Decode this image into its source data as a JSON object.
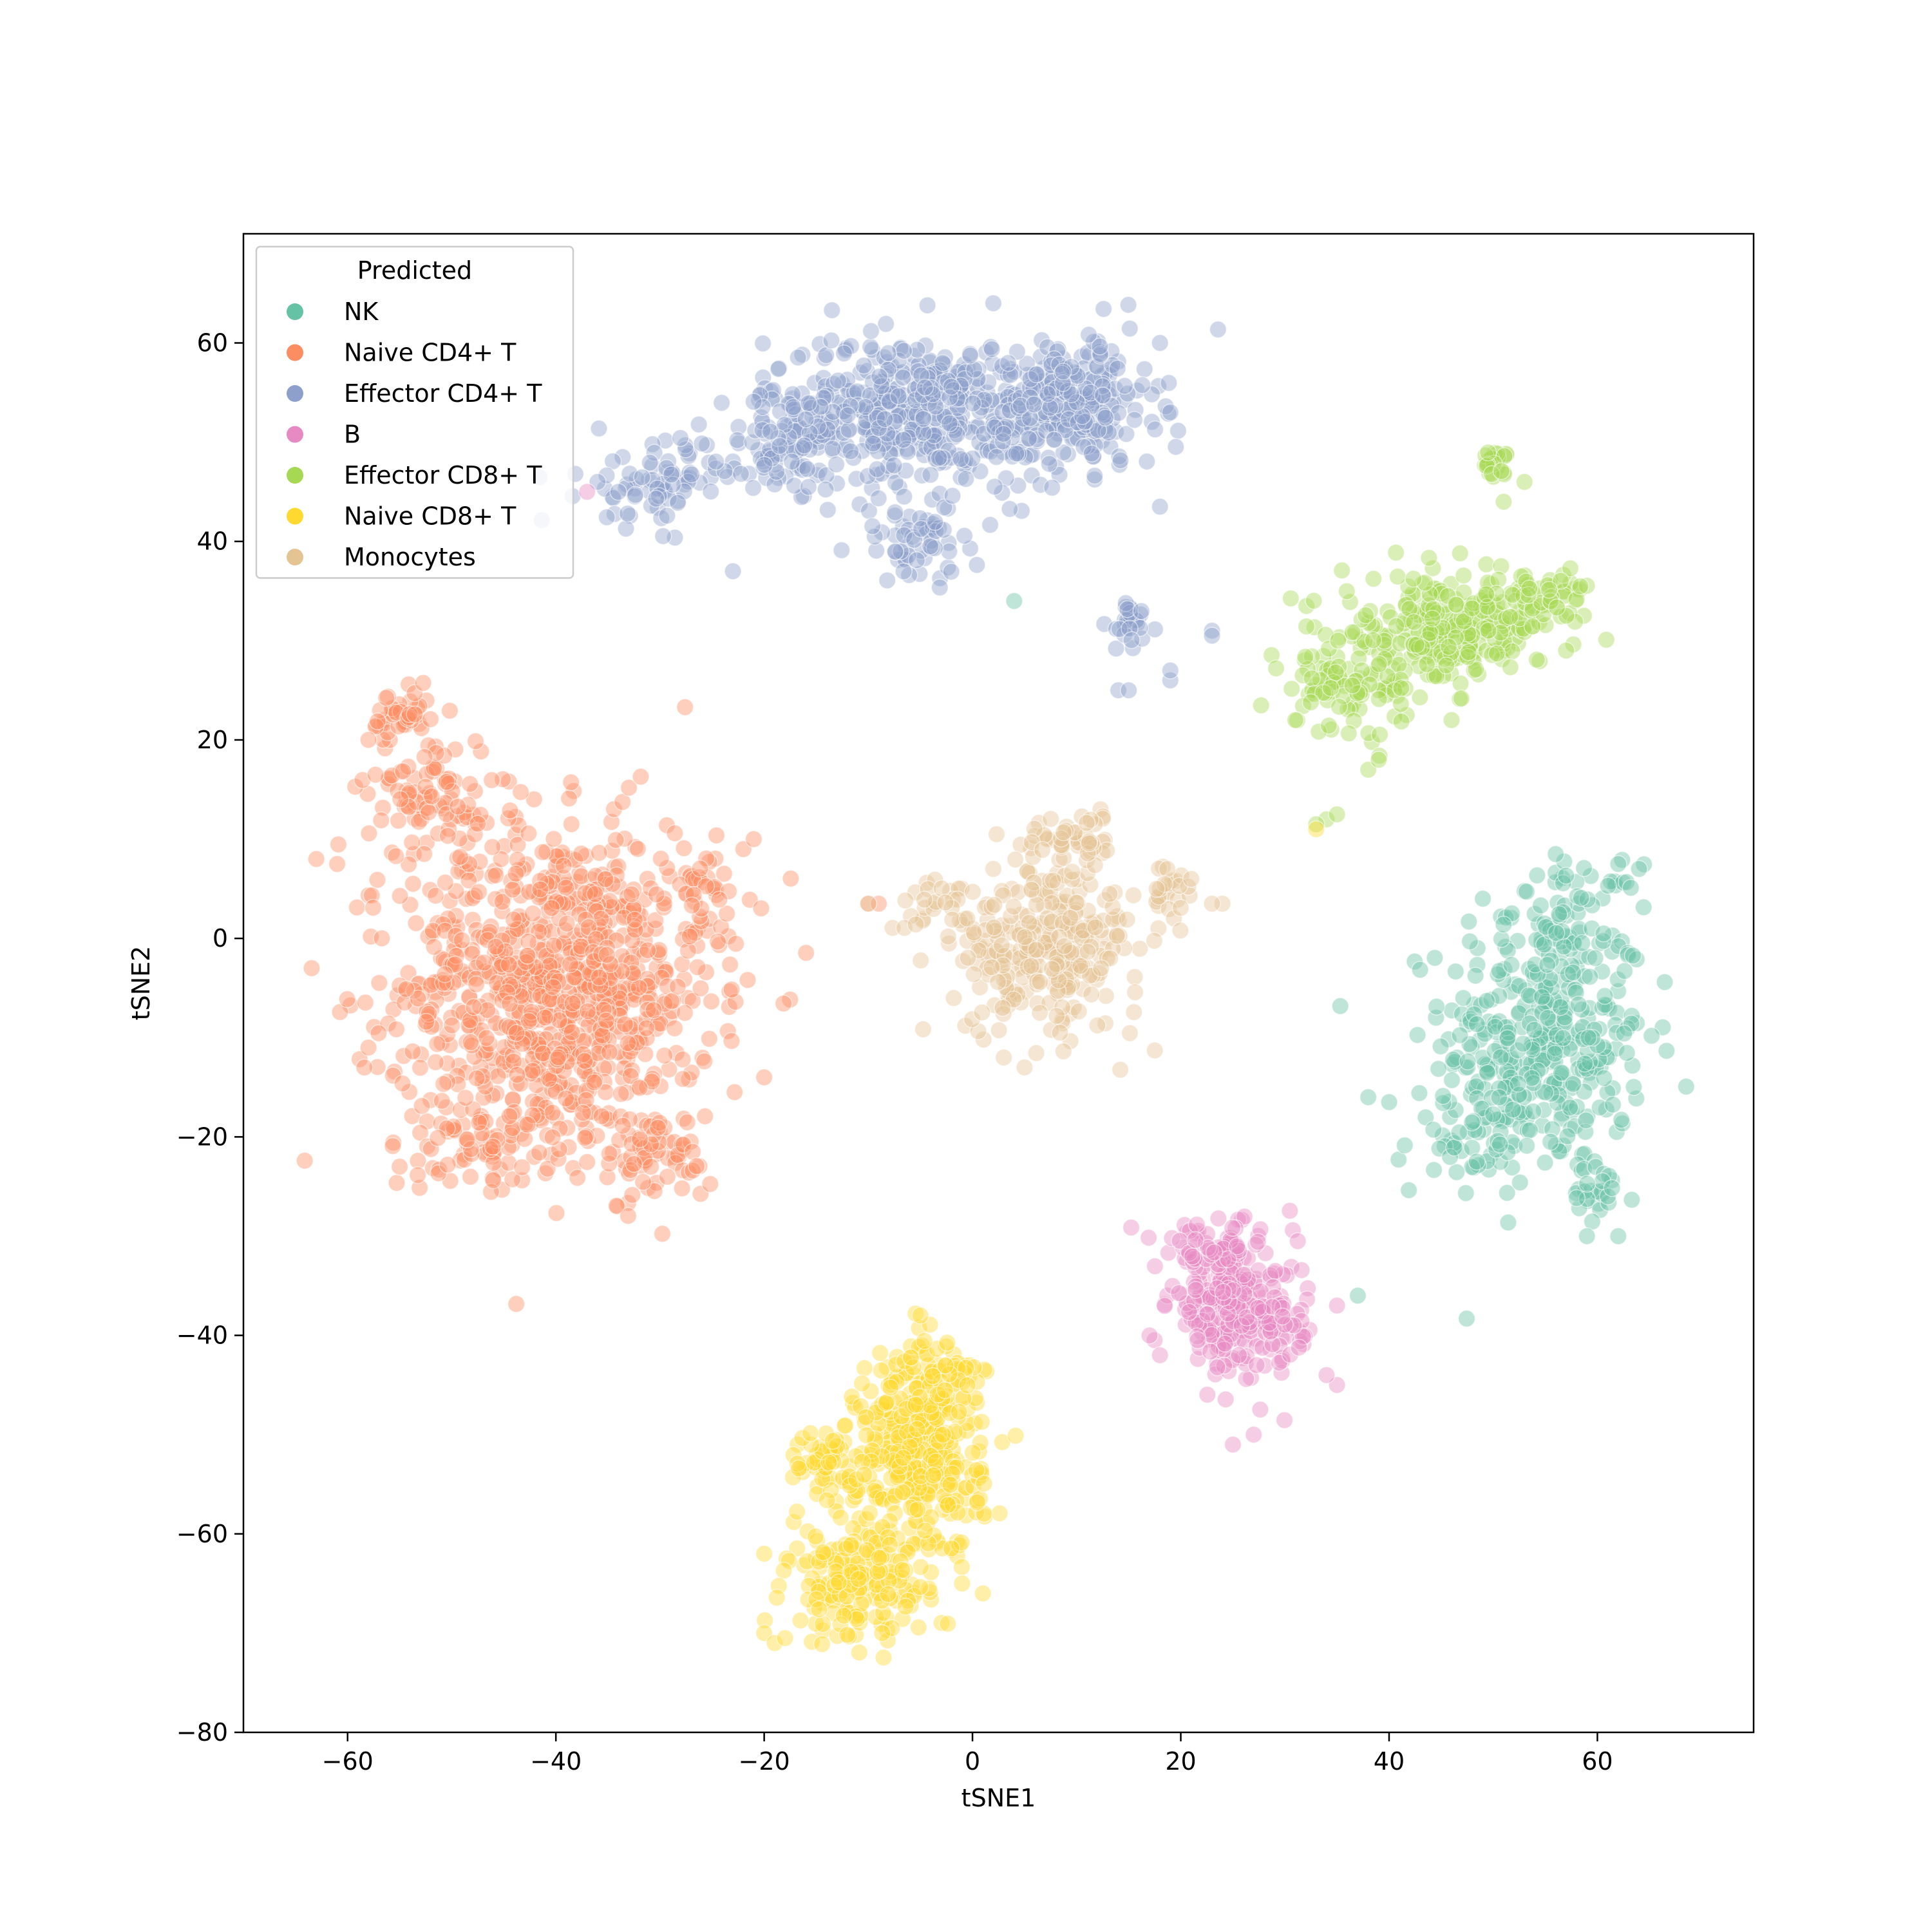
{
  "chart_data": {
    "type": "scatter",
    "title": "",
    "xlabel": "tSNE1",
    "ylabel": "tSNE2",
    "xlim": [
      -70,
      75
    ],
    "ylim": [
      -80,
      71
    ],
    "x_ticks": [
      -60,
      -40,
      -20,
      0,
      20,
      40,
      60
    ],
    "y_ticks": [
      -80,
      -60,
      -40,
      -20,
      0,
      20,
      40,
      60
    ],
    "x_tick_labels": [
      "−60",
      "−40",
      "−20",
      "0",
      "20",
      "40",
      "60"
    ],
    "y_tick_labels": [
      "−80",
      "−60",
      "−40",
      "−20",
      "0",
      "20",
      "40",
      "60"
    ],
    "grid": false,
    "legend": {
      "title": "Predicted",
      "placement": "top-left"
    },
    "series": [
      {
        "name": "NK",
        "color": "#66c2a5",
        "clusters": [
          {
            "center": [
              55,
              -10
            ],
            "spread": [
              6.5,
              9
            ],
            "n": 360
          },
          {
            "center": [
              48,
              -20
            ],
            "spread": [
              5,
              4
            ],
            "n": 60
          },
          {
            "center": [
              58,
              3
            ],
            "spread": [
              4,
              3
            ],
            "n": 50
          },
          {
            "center": [
              60,
              -26
            ],
            "spread": [
              2.5,
              2
            ],
            "n": 25
          }
        ],
        "points": [
          [
            56,
            8.5
          ],
          [
            62,
            7.5
          ],
          [
            64,
            7
          ],
          [
            49,
            4
          ],
          [
            38,
            -16
          ],
          [
            40,
            -16.5
          ],
          [
            37,
            -36
          ],
          [
            4,
            34
          ],
          [
            59,
            -30
          ],
          [
            62,
            -30
          ]
        ]
      },
      {
        "name": "Naive CD4+ T",
        "color": "#fc8d62",
        "clusters": [
          {
            "center": [
              -40,
              -5
            ],
            "spread": [
              10,
              11
            ],
            "n": 950
          },
          {
            "center": [
              -52,
              15
            ],
            "spread": [
              4,
              4
            ],
            "n": 90
          },
          {
            "center": [
              -55,
              22
            ],
            "spread": [
              2,
              2
            ],
            "n": 40
          },
          {
            "center": [
              -30,
              -22
            ],
            "spread": [
              3.5,
              3
            ],
            "n": 60
          },
          {
            "center": [
              -48,
              -20
            ],
            "spread": [
              4,
              3
            ],
            "n": 60
          },
          {
            "center": [
              -26,
              5
            ],
            "spread": [
              3,
              3
            ],
            "n": 40
          }
        ],
        "points": [
          [
            -63,
            8
          ],
          [
            -61,
            7.5
          ],
          [
            -58,
            20
          ],
          [
            -22,
            9
          ],
          [
            -21,
            10
          ],
          [
            -10,
            3.5
          ],
          [
            -9,
            3.5
          ],
          [
            -58,
            -11
          ],
          [
            -55,
            -23
          ],
          [
            -20,
            -14
          ]
        ]
      },
      {
        "name": "Effector CD4+ T",
        "color": "#8da0cb",
        "clusters": [
          {
            "center": [
              -5,
              53
            ],
            "spread": [
              10,
              5
            ],
            "n": 500
          },
          {
            "center": [
              10,
              54
            ],
            "spread": [
              5,
              4.5
            ],
            "n": 200
          },
          {
            "center": [
              -30,
              46
            ],
            "spread": [
              5,
              3
            ],
            "n": 80
          },
          {
            "center": [
              -5,
              40
            ],
            "spread": [
              4,
              3
            ],
            "n": 60
          },
          {
            "center": [
              -18,
              50
            ],
            "spread": [
              4,
              3
            ],
            "n": 60
          },
          {
            "center": [
              15,
              32
            ],
            "spread": [
              1.5,
              2
            ],
            "n": 30
          }
        ],
        "points": [
          [
            -36,
            46
          ],
          [
            -34,
            45
          ],
          [
            -23,
            37
          ],
          [
            14,
            25
          ],
          [
            15,
            25
          ],
          [
            19,
            26
          ],
          [
            19,
            27
          ],
          [
            23,
            31
          ],
          [
            23,
            30.5
          ],
          [
            18,
            43.5
          ],
          [
            2,
            64
          ],
          [
            18,
            60
          ],
          [
            19,
            53
          ]
        ]
      },
      {
        "name": "B",
        "color": "#e78ac3",
        "clusters": [
          {
            "center": [
              25,
              -37
            ],
            "spread": [
              4,
              4.5
            ],
            "n": 250
          },
          {
            "center": [
              22,
              -31
            ],
            "spread": [
              3,
              1.5
            ],
            "n": 40
          },
          {
            "center": [
              30,
              -40
            ],
            "spread": [
              2,
              2
            ],
            "n": 30
          }
        ],
        "points": [
          [
            17,
            -40
          ],
          [
            18,
            -42
          ],
          [
            35,
            -45
          ],
          [
            34,
            -44
          ],
          [
            25,
            -51
          ],
          [
            27,
            -50
          ],
          [
            35,
            -37
          ],
          [
            -37,
            45
          ]
        ]
      },
      {
        "name": "Effector CD8+ T",
        "color": "#a6d854",
        "clusters": [
          {
            "center": [
              45,
              31
            ],
            "spread": [
              6.5,
              3.5
            ],
            "n": 260
          },
          {
            "center": [
              36,
              25
            ],
            "spread": [
              4,
              2.5
            ],
            "n": 80
          },
          {
            "center": [
              55,
              34
            ],
            "spread": [
              3,
              2.5
            ],
            "n": 60
          },
          {
            "center": [
              50,
              48
            ],
            "spread": [
              1,
              0.8
            ],
            "n": 25
          }
        ],
        "points": [
          [
            38,
            17
          ],
          [
            39,
            18
          ],
          [
            34,
            12
          ],
          [
            35,
            12.5
          ],
          [
            33,
            11.5
          ],
          [
            51,
            44
          ],
          [
            53,
            46
          ],
          [
            57,
            29
          ],
          [
            31,
            22
          ]
        ]
      },
      {
        "name": "Naive CD8+ T",
        "color": "#ffd92f",
        "clusters": [
          {
            "center": [
              -5,
              -52
            ],
            "spread": [
              4,
              7
            ],
            "n": 350
          },
          {
            "center": [
              -11,
              -65
            ],
            "spread": [
              4.5,
              4
            ],
            "n": 180
          },
          {
            "center": [
              -14,
              -53
            ],
            "spread": [
              3,
              2.5
            ],
            "n": 60
          },
          {
            "center": [
              -3,
              -44
            ],
            "spread": [
              2.5,
              2.5
            ],
            "n": 50
          }
        ],
        "points": [
          [
            -20,
            -70
          ],
          [
            -19,
            -71
          ],
          [
            -18,
            -70.5
          ],
          [
            -20,
            -62
          ],
          [
            1,
            -66
          ],
          [
            -1,
            -65
          ],
          [
            -5,
            -38
          ],
          [
            33,
            11
          ]
        ]
      },
      {
        "name": "Monocytes",
        "color": "#e5c494",
        "clusters": [
          {
            "center": [
              7,
              -1
            ],
            "spread": [
              6,
              5.5
            ],
            "n": 280
          },
          {
            "center": [
              10,
              10
            ],
            "spread": [
              3.5,
              2
            ],
            "n": 50
          },
          {
            "center": [
              19,
              5
            ],
            "spread": [
              2,
              2
            ],
            "n": 25
          },
          {
            "center": [
              -4,
              3
            ],
            "spread": [
              2.5,
              1.5
            ],
            "n": 25
          }
        ],
        "points": [
          [
            24,
            3.5
          ],
          [
            23,
            3.5
          ],
          [
            5,
            -13
          ],
          [
            3,
            -12
          ],
          [
            21,
            6
          ],
          [
            -10,
            3.5
          ],
          [
            2,
            7
          ]
        ]
      }
    ]
  }
}
